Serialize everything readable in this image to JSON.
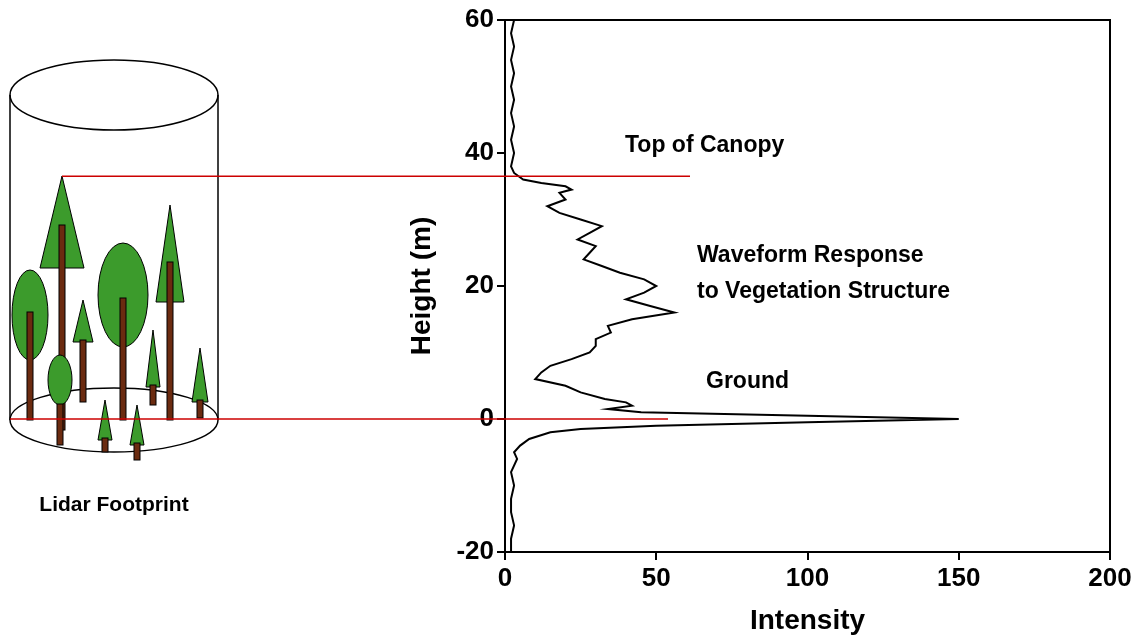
{
  "chart_data": {
    "type": "line",
    "x_label": "Intensity",
    "y_label": "Height (m)",
    "color": "#000000",
    "x": [
      3,
      2,
      3,
      2,
      3,
      2,
      3,
      2,
      3,
      2,
      3,
      2,
      3,
      6,
      12,
      20,
      22,
      18,
      20,
      14,
      18,
      25,
      32,
      28,
      24,
      30,
      28,
      26,
      32,
      38,
      46,
      50,
      46,
      40,
      48,
      56,
      42,
      34,
      35,
      30,
      30,
      28,
      22,
      15,
      12,
      10,
      20,
      25,
      33,
      40,
      42,
      34,
      45,
      100,
      150,
      100,
      50,
      25,
      15,
      8,
      5,
      3,
      4,
      2,
      3,
      2,
      2,
      3,
      2,
      2
    ],
    "values": [
      60,
      58,
      56,
      54,
      52,
      50,
      48,
      46,
      44,
      42,
      40,
      38,
      37,
      36,
      35.5,
      35,
      34.5,
      34,
      33,
      32,
      31,
      30,
      29,
      28,
      27,
      26,
      25,
      24,
      23,
      22,
      21,
      20,
      19,
      18,
      17,
      16,
      15,
      14,
      13,
      12,
      11,
      10,
      9,
      8,
      7,
      6,
      5,
      4,
      3,
      2.5,
      2,
      1.5,
      1,
      0.5,
      0,
      -0.5,
      -1,
      -1.5,
      -2,
      -3,
      -4,
      -5,
      -6,
      -8,
      -10,
      -12,
      -14,
      -16,
      -18,
      -20
    ],
    "xlim": [
      0,
      200
    ],
    "xticks": [
      0,
      50,
      100,
      150,
      200
    ],
    "ylim": [
      -20,
      60
    ],
    "yticks": [
      -20,
      0,
      20,
      40,
      60
    ],
    "grid": false,
    "reference_lines": [
      {
        "label": "Top of Canopy",
        "y": 36.5,
        "color": "#cc0000"
      },
      {
        "label": "Ground",
        "y": 0,
        "color": "#cc0000"
      }
    ],
    "annotation": [
      "Waveform Response",
      "to Vegetation Structure"
    ],
    "diagram_label": "Lidar Footprint"
  }
}
